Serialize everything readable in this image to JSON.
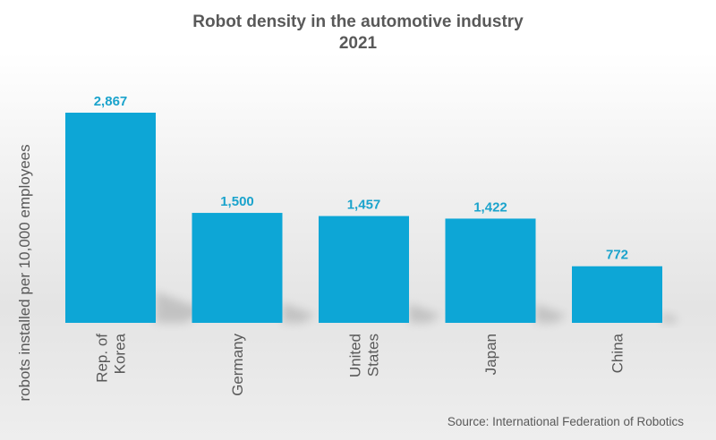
{
  "chart_data": {
    "type": "bar",
    "title": "Robot density in the automotive industry",
    "subtitle": "2021",
    "ylabel": "robots installed per 10,000 employees",
    "categories": [
      [
        "Rep. of",
        "Korea"
      ],
      [
        "Germany"
      ],
      [
        "United",
        "States"
      ],
      [
        "Japan"
      ],
      [
        "China"
      ]
    ],
    "values": [
      2867,
      1500,
      1457,
      1422,
      772
    ],
    "value_labels": [
      "2,867",
      "1,500",
      "1,457",
      "1,422",
      "772"
    ],
    "ylim": [
      0,
      2900
    ],
    "grid": false,
    "bar_color": "#0da6d6",
    "label_color": "#1aa3cc"
  },
  "source": "Source: International Federation of Robotics"
}
